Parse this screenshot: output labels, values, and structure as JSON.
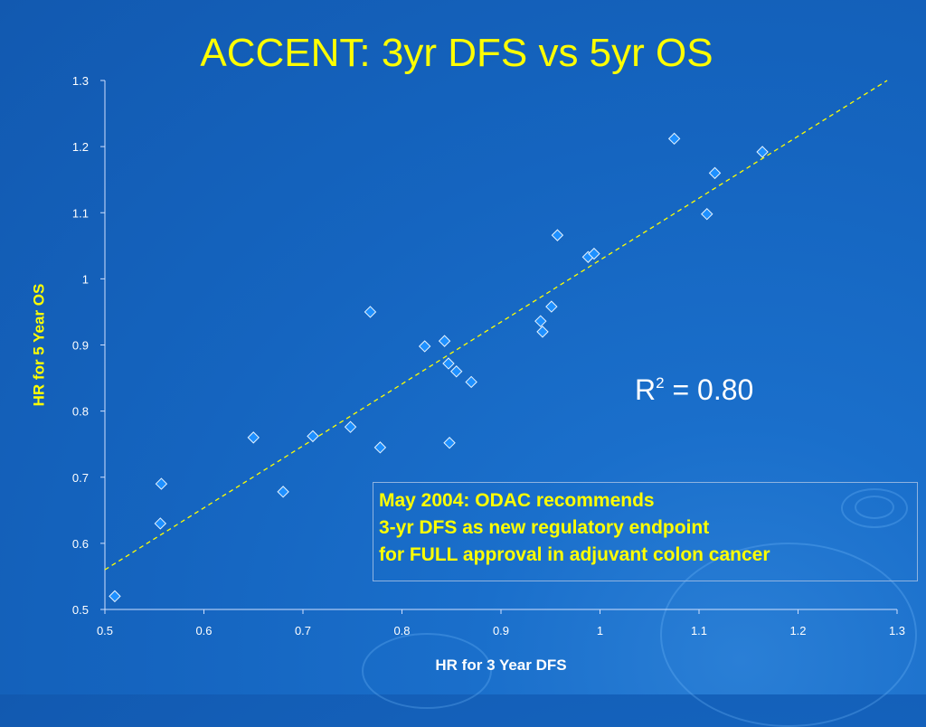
{
  "title": "ACCENT:  3yr DFS vs 5yr OS",
  "r2": {
    "base": "R",
    "exp": "2",
    "value": " = 0.80"
  },
  "note": {
    "lines": [
      "May 2004: ODAC recommends",
      "3-yr DFS as new regulatory endpoint",
      "for FULL approval in adjuvant colon cancer"
    ]
  },
  "colors": {
    "title": "#ffff00",
    "ylabel": "#ffff00",
    "marker": "#1e90ff",
    "trendline": "#ffff00",
    "background": "#1565c0"
  },
  "chart_data": {
    "type": "scatter",
    "xlabel": "HR for 3 Year DFS",
    "ylabel": "HR for 5 Year OS",
    "xlim": [
      0.5,
      1.3
    ],
    "ylim": [
      0.5,
      1.3
    ],
    "x_ticks": [
      "0.5",
      "0.6",
      "0.7",
      "0.8",
      "0.9",
      "1",
      "1.1",
      "1.2",
      "1.3"
    ],
    "y_ticks": [
      "0.5",
      "0.6",
      "0.7",
      "0.8",
      "0.9",
      "1",
      "1.1",
      "1.2",
      "1.3"
    ],
    "grid": false,
    "points": [
      {
        "x": 0.51,
        "y": 0.52
      },
      {
        "x": 0.556,
        "y": 0.63
      },
      {
        "x": 0.557,
        "y": 0.69
      },
      {
        "x": 0.65,
        "y": 0.76
      },
      {
        "x": 0.68,
        "y": 0.678
      },
      {
        "x": 0.71,
        "y": 0.762
      },
      {
        "x": 0.748,
        "y": 0.776
      },
      {
        "x": 0.768,
        "y": 0.95
      },
      {
        "x": 0.778,
        "y": 0.745
      },
      {
        "x": 0.823,
        "y": 0.898
      },
      {
        "x": 0.843,
        "y": 0.906
      },
      {
        "x": 0.847,
        "y": 0.872
      },
      {
        "x": 0.848,
        "y": 0.752
      },
      {
        "x": 0.855,
        "y": 0.86
      },
      {
        "x": 0.87,
        "y": 0.844
      },
      {
        "x": 0.94,
        "y": 0.936
      },
      {
        "x": 0.942,
        "y": 0.92
      },
      {
        "x": 0.951,
        "y": 0.958
      },
      {
        "x": 0.957,
        "y": 1.066
      },
      {
        "x": 0.988,
        "y": 1.033
      },
      {
        "x": 0.994,
        "y": 1.038
      },
      {
        "x": 1.075,
        "y": 1.212
      },
      {
        "x": 1.108,
        "y": 1.098
      },
      {
        "x": 1.116,
        "y": 1.16
      },
      {
        "x": 1.164,
        "y": 1.192
      }
    ],
    "trendline": {
      "style": "dashed",
      "x": [
        0.5,
        1.29
      ],
      "y": [
        0.56,
        1.3
      ]
    }
  }
}
